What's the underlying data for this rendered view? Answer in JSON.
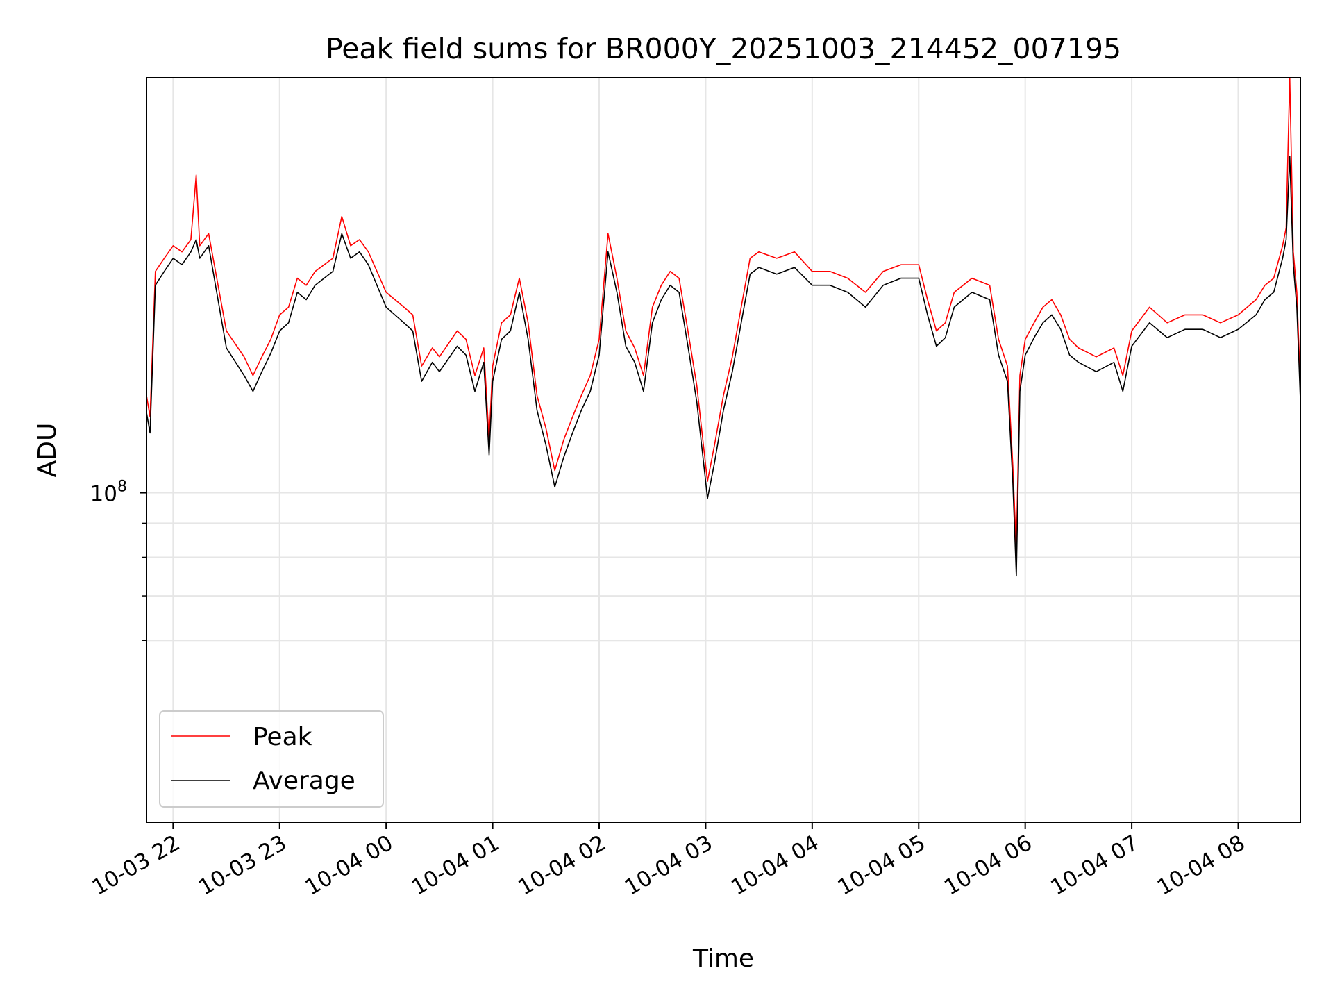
{
  "chart_data": {
    "type": "line",
    "title": "Peak field sums for BR000Y_20251003_214452_007195",
    "xlabel": "Time",
    "ylabel": "ADU",
    "y_scale": "log",
    "ylim": [
      32000000,
      420000000
    ],
    "xlim": [
      "2025-10-03 21:45",
      "2025-10-04 08:35"
    ],
    "x_ticks": [
      "10-03 22",
      "10-03 23",
      "10-04 00",
      "10-04 01",
      "10-04 02",
      "10-04 03",
      "10-04 04",
      "10-04 05",
      "10-04 06",
      "10-04 07",
      "10-04 08"
    ],
    "y_tick_labels": [
      {
        "value": 100000000,
        "base": "10",
        "exp": "8"
      }
    ],
    "y_minor_ticks": [
      60000000,
      70000000,
      80000000,
      90000000
    ],
    "grid": true,
    "legend_position": "lower-left",
    "colors": {
      "peak": "#ff0000",
      "average": "#000000",
      "grid": "#e6e6e6"
    },
    "series": [
      {
        "name": "Peak",
        "color": "#ff0000",
        "x": [
          "2025-10-03 21:45",
          "2025-10-03 21:47",
          "2025-10-03 21:50",
          "2025-10-03 21:55",
          "2025-10-03 22:00",
          "2025-10-03 22:05",
          "2025-10-03 22:10",
          "2025-10-03 22:13",
          "2025-10-03 22:15",
          "2025-10-03 22:20",
          "2025-10-03 22:30",
          "2025-10-03 22:40",
          "2025-10-03 22:45",
          "2025-10-03 22:50",
          "2025-10-03 22:55",
          "2025-10-03 23:00",
          "2025-10-03 23:05",
          "2025-10-03 23:10",
          "2025-10-03 23:15",
          "2025-10-03 23:20",
          "2025-10-03 23:30",
          "2025-10-03 23:35",
          "2025-10-03 23:40",
          "2025-10-03 23:45",
          "2025-10-03 23:50",
          "2025-10-04 00:00",
          "2025-10-04 00:10",
          "2025-10-04 00:15",
          "2025-10-04 00:20",
          "2025-10-04 00:26",
          "2025-10-04 00:30",
          "2025-10-04 00:40",
          "2025-10-04 00:45",
          "2025-10-04 00:50",
          "2025-10-04 00:55",
          "2025-10-04 00:58",
          "2025-10-04 01:00",
          "2025-10-04 01:05",
          "2025-10-04 01:10",
          "2025-10-04 01:15",
          "2025-10-04 01:20",
          "2025-10-04 01:25",
          "2025-10-04 01:30",
          "2025-10-04 01:35",
          "2025-10-04 01:40",
          "2025-10-04 01:45",
          "2025-10-04 01:50",
          "2025-10-04 01:55",
          "2025-10-04 02:00",
          "2025-10-04 02:05",
          "2025-10-04 02:10",
          "2025-10-04 02:15",
          "2025-10-04 02:20",
          "2025-10-04 02:25",
          "2025-10-04 02:30",
          "2025-10-04 02:35",
          "2025-10-04 02:40",
          "2025-10-04 02:45",
          "2025-10-04 02:50",
          "2025-10-04 02:55",
          "2025-10-04 03:00",
          "2025-10-04 03:01",
          "2025-10-04 03:05",
          "2025-10-04 03:10",
          "2025-10-04 03:15",
          "2025-10-04 03:20",
          "2025-10-04 03:25",
          "2025-10-04 03:30",
          "2025-10-04 03:40",
          "2025-10-04 03:50",
          "2025-10-04 04:00",
          "2025-10-04 04:10",
          "2025-10-04 04:20",
          "2025-10-04 04:30",
          "2025-10-04 04:40",
          "2025-10-04 04:50",
          "2025-10-04 05:00",
          "2025-10-04 05:05",
          "2025-10-04 05:10",
          "2025-10-04 05:15",
          "2025-10-04 05:20",
          "2025-10-04 05:30",
          "2025-10-04 05:40",
          "2025-10-04 05:45",
          "2025-10-04 05:50",
          "2025-10-04 05:53",
          "2025-10-04 05:55",
          "2025-10-04 05:57",
          "2025-10-04 06:00",
          "2025-10-04 06:05",
          "2025-10-04 06:10",
          "2025-10-04 06:15",
          "2025-10-04 06:20",
          "2025-10-04 06:25",
          "2025-10-04 06:30",
          "2025-10-04 06:40",
          "2025-10-04 06:50",
          "2025-10-04 06:55",
          "2025-10-04 07:00",
          "2025-10-04 07:10",
          "2025-10-04 07:20",
          "2025-10-04 07:30",
          "2025-10-04 07:40",
          "2025-10-04 07:50",
          "2025-10-04 08:00",
          "2025-10-04 08:10",
          "2025-10-04 08:15",
          "2025-10-04 08:20",
          "2025-10-04 08:25",
          "2025-10-04 08:27",
          "2025-10-04 08:29",
          "2025-10-04 08:31",
          "2025-10-04 08:33",
          "2025-10-04 08:35"
        ],
        "values": [
          140000000,
          130000000,
          215000000,
          225000000,
          235000000,
          230000000,
          240000000,
          300000000,
          235000000,
          245000000,
          175000000,
          160000000,
          150000000,
          160000000,
          170000000,
          185000000,
          190000000,
          210000000,
          205000000,
          215000000,
          225000000,
          260000000,
          235000000,
          240000000,
          230000000,
          200000000,
          190000000,
          185000000,
          155000000,
          165000000,
          160000000,
          175000000,
          170000000,
          150000000,
          165000000,
          120000000,
          155000000,
          180000000,
          185000000,
          210000000,
          180000000,
          140000000,
          125000000,
          108000000,
          120000000,
          130000000,
          140000000,
          150000000,
          170000000,
          245000000,
          210000000,
          175000000,
          165000000,
          150000000,
          190000000,
          205000000,
          215000000,
          210000000,
          175000000,
          145000000,
          110000000,
          104000000,
          118000000,
          140000000,
          160000000,
          190000000,
          225000000,
          230000000,
          225000000,
          230000000,
          215000000,
          215000000,
          210000000,
          200000000,
          215000000,
          220000000,
          220000000,
          195000000,
          175000000,
          180000000,
          200000000,
          210000000,
          205000000,
          170000000,
          155000000,
          110000000,
          82000000,
          150000000,
          170000000,
          180000000,
          190000000,
          195000000,
          185000000,
          170000000,
          165000000,
          160000000,
          165000000,
          150000000,
          175000000,
          190000000,
          180000000,
          185000000,
          185000000,
          180000000,
          185000000,
          195000000,
          205000000,
          210000000,
          235000000,
          250000000,
          420000000,
          230000000,
          200000000,
          145000000
        ]
      },
      {
        "name": "Average",
        "color": "#000000",
        "x": [
          "2025-10-03 21:45",
          "2025-10-03 21:47",
          "2025-10-03 21:50",
          "2025-10-03 21:55",
          "2025-10-03 22:00",
          "2025-10-03 22:05",
          "2025-10-03 22:10",
          "2025-10-03 22:13",
          "2025-10-03 22:15",
          "2025-10-03 22:20",
          "2025-10-03 22:30",
          "2025-10-03 22:40",
          "2025-10-03 22:45",
          "2025-10-03 22:50",
          "2025-10-03 22:55",
          "2025-10-03 23:00",
          "2025-10-03 23:05",
          "2025-10-03 23:10",
          "2025-10-03 23:15",
          "2025-10-03 23:20",
          "2025-10-03 23:30",
          "2025-10-03 23:35",
          "2025-10-03 23:40",
          "2025-10-03 23:45",
          "2025-10-03 23:50",
          "2025-10-04 00:00",
          "2025-10-04 00:10",
          "2025-10-04 00:15",
          "2025-10-04 00:20",
          "2025-10-04 00:26",
          "2025-10-04 00:30",
          "2025-10-04 00:40",
          "2025-10-04 00:45",
          "2025-10-04 00:50",
          "2025-10-04 00:55",
          "2025-10-04 00:58",
          "2025-10-04 01:00",
          "2025-10-04 01:05",
          "2025-10-04 01:10",
          "2025-10-04 01:15",
          "2025-10-04 01:20",
          "2025-10-04 01:25",
          "2025-10-04 01:30",
          "2025-10-04 01:35",
          "2025-10-04 01:40",
          "2025-10-04 01:45",
          "2025-10-04 01:50",
          "2025-10-04 01:55",
          "2025-10-04 02:00",
          "2025-10-04 02:05",
          "2025-10-04 02:10",
          "2025-10-04 02:15",
          "2025-10-04 02:20",
          "2025-10-04 02:25",
          "2025-10-04 02:30",
          "2025-10-04 02:35",
          "2025-10-04 02:40",
          "2025-10-04 02:45",
          "2025-10-04 02:50",
          "2025-10-04 02:55",
          "2025-10-04 03:00",
          "2025-10-04 03:01",
          "2025-10-04 03:05",
          "2025-10-04 03:10",
          "2025-10-04 03:15",
          "2025-10-04 03:20",
          "2025-10-04 03:25",
          "2025-10-04 03:30",
          "2025-10-04 03:40",
          "2025-10-04 03:50",
          "2025-10-04 04:00",
          "2025-10-04 04:10",
          "2025-10-04 04:20",
          "2025-10-04 04:30",
          "2025-10-04 04:40",
          "2025-10-04 04:50",
          "2025-10-04 05:00",
          "2025-10-04 05:05",
          "2025-10-04 05:10",
          "2025-10-04 05:15",
          "2025-10-04 05:20",
          "2025-10-04 05:30",
          "2025-10-04 05:40",
          "2025-10-04 05:45",
          "2025-10-04 05:50",
          "2025-10-04 05:53",
          "2025-10-04 05:55",
          "2025-10-04 05:57",
          "2025-10-04 06:00",
          "2025-10-04 06:05",
          "2025-10-04 06:10",
          "2025-10-04 06:15",
          "2025-10-04 06:20",
          "2025-10-04 06:25",
          "2025-10-04 06:30",
          "2025-10-04 06:40",
          "2025-10-04 06:50",
          "2025-10-04 06:55",
          "2025-10-04 07:00",
          "2025-10-04 07:10",
          "2025-10-04 07:20",
          "2025-10-04 07:30",
          "2025-10-04 07:40",
          "2025-10-04 07:50",
          "2025-10-04 08:00",
          "2025-10-04 08:10",
          "2025-10-04 08:15",
          "2025-10-04 08:20",
          "2025-10-04 08:25",
          "2025-10-04 08:27",
          "2025-10-04 08:29",
          "2025-10-04 08:31",
          "2025-10-04 08:33",
          "2025-10-04 08:35"
        ],
        "values": [
          132000000,
          123000000,
          205000000,
          215000000,
          225000000,
          220000000,
          230000000,
          240000000,
          225000000,
          235000000,
          165000000,
          150000000,
          142000000,
          152000000,
          162000000,
          175000000,
          180000000,
          200000000,
          195000000,
          205000000,
          215000000,
          245000000,
          225000000,
          230000000,
          220000000,
          190000000,
          180000000,
          175000000,
          147000000,
          157000000,
          152000000,
          166000000,
          161000000,
          142000000,
          157000000,
          114000000,
          147000000,
          170000000,
          175000000,
          200000000,
          170000000,
          133000000,
          118000000,
          102000000,
          113000000,
          123000000,
          133000000,
          142000000,
          161000000,
          230000000,
          200000000,
          166000000,
          157000000,
          142000000,
          180000000,
          195000000,
          205000000,
          200000000,
          166000000,
          137000000,
          104000000,
          98000000,
          111000000,
          133000000,
          152000000,
          180000000,
          213000000,
          218000000,
          213000000,
          218000000,
          205000000,
          205000000,
          200000000,
          190000000,
          205000000,
          210000000,
          210000000,
          185000000,
          166000000,
          171000000,
          190000000,
          200000000,
          195000000,
          161000000,
          147000000,
          104000000,
          75000000,
          142000000,
          161000000,
          171000000,
          180000000,
          185000000,
          176000000,
          161000000,
          157000000,
          152000000,
          157000000,
          142000000,
          166000000,
          180000000,
          171000000,
          176000000,
          176000000,
          171000000,
          176000000,
          185000000,
          195000000,
          200000000,
          225000000,
          240000000,
          320000000,
          220000000,
          190000000,
          138000000
        ]
      }
    ]
  }
}
